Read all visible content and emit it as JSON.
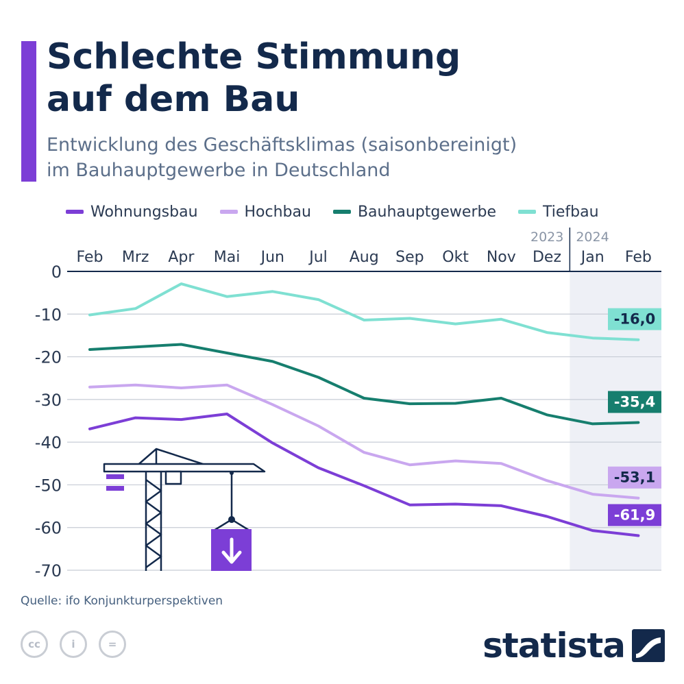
{
  "header": {
    "title_line1": "Schlechte Stimmung",
    "title_line2": "auf dem Bau",
    "subtitle_line1": "Entwicklung des Geschäftsklimas (saisonbereinigt)",
    "subtitle_line2": "im Bauhauptgewerbe in Deutschland",
    "accent_color": "#7c3ed6"
  },
  "chart_data": {
    "type": "line",
    "categories": [
      "Feb",
      "Mrz",
      "Apr",
      "Mai",
      "Jun",
      "Jul",
      "Aug",
      "Sep",
      "Okt",
      "Nov",
      "Dez",
      "Jan",
      "Feb"
    ],
    "year_labels": [
      "2023",
      "2024"
    ],
    "ylim": [
      -70,
      0
    ],
    "yticks": [
      0,
      -10,
      -20,
      -30,
      -40,
      -50,
      -60,
      -70
    ],
    "ytick_labels": [
      "0",
      "-10",
      "-20",
      "-30",
      "-40",
      "-50",
      "-60",
      "-70"
    ],
    "highlight_from_index": 11,
    "series": [
      {
        "name": "Wohnungsbau",
        "color": "#7c3ed6",
        "end_label": "-61,9",
        "values": [
          -36.9,
          -34.3,
          -34.7,
          -33.4,
          -40.2,
          -46.0,
          -50.2,
          -54.7,
          -54.5,
          -54.9,
          -57.4,
          -60.7,
          -61.9
        ]
      },
      {
        "name": "Hochbau",
        "color": "#c9a7ef",
        "end_label": "-53,1",
        "values": [
          -27.1,
          -26.6,
          -27.3,
          -26.6,
          -31.2,
          -36.2,
          -42.4,
          -45.3,
          -44.4,
          -45.0,
          -49.0,
          -52.2,
          -53.1
        ]
      },
      {
        "name": "Bauhauptgewerbe",
        "color": "#167e6e",
        "end_label": "-35,4",
        "values": [
          -18.3,
          -17.7,
          -17.1,
          -19.1,
          -21.1,
          -24.8,
          -29.7,
          -31.0,
          -30.9,
          -29.7,
          -33.6,
          -35.7,
          -35.4
        ]
      },
      {
        "name": "Tiefbau",
        "color": "#7fe0d2",
        "end_label": "-16,0",
        "values": [
          -10.2,
          -8.7,
          -2.9,
          -5.9,
          -4.7,
          -6.6,
          -11.4,
          -11.0,
          -12.3,
          -11.2,
          -14.3,
          -15.6,
          -16.0
        ]
      }
    ]
  },
  "footer": {
    "source": "Quelle: ifo Konjunkturperspektiven",
    "brand": "statista",
    "license_icons": [
      "cc-icon",
      "by-icon",
      "nd-icon"
    ],
    "license_glyphs": [
      "cc",
      "i",
      "="
    ]
  }
}
